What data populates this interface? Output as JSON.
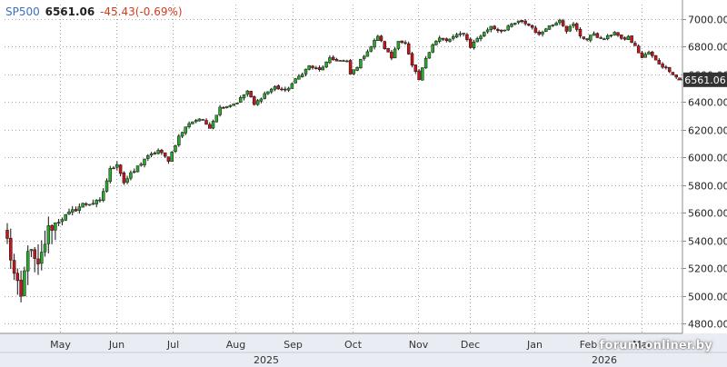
{
  "header": {
    "symbol": "SP500",
    "last": "6561.06",
    "change": "-45.43(-0.69%)"
  },
  "colors": {
    "up": "#2ba82b",
    "down": "#c4161c",
    "grid": "#a8a8a8",
    "axis_band": "#e9ecf2",
    "symbol": "#3a6fc4",
    "change": "#d33b1e",
    "last_tag": "#333333"
  },
  "watermark": "forum.onliner.by",
  "chart_data": {
    "type": "candlestick",
    "symbol": "SP500",
    "last_value": 6561.06,
    "last_label": "6561.06",
    "change": -45.43,
    "change_pct": -0.69,
    "ylim": [
      4700,
      7100
    ],
    "y_ticks": [
      4800,
      5000,
      5200,
      5400,
      5600,
      5800,
      6000,
      6200,
      6400,
      6600,
      6800,
      7000
    ],
    "y_tick_labels": [
      "4800.00",
      "5000.00",
      "5200.00",
      "5400.00",
      "5600.00",
      "5800.00",
      "6000.00",
      "6200.00",
      "6400.00",
      "6600.00",
      "6800.00",
      "7000.00"
    ],
    "x_months": [
      "May",
      "Jun",
      "Jul",
      "Aug",
      "Sep",
      "Oct",
      "Nov",
      "Dec",
      "Jan",
      "Feb",
      "Mar"
    ],
    "x_years": [
      "2025",
      "2026"
    ],
    "grid": true,
    "price_path": [
      [
        0,
        5400
      ],
      [
        2,
        5150
      ],
      [
        4,
        4980
      ],
      [
        6,
        5350
      ],
      [
        9,
        5200
      ],
      [
        12,
        5480
      ],
      [
        16,
        5560
      ],
      [
        22,
        5660
      ],
      [
        27,
        5680
      ],
      [
        30,
        5910
      ],
      [
        32,
        5960
      ],
      [
        34,
        5820
      ],
      [
        37,
        5900
      ],
      [
        40,
        5990
      ],
      [
        44,
        6050
      ],
      [
        47,
        5980
      ],
      [
        50,
        6150
      ],
      [
        53,
        6250
      ],
      [
        56,
        6280
      ],
      [
        59,
        6220
      ],
      [
        62,
        6360
      ],
      [
        65,
        6380
      ],
      [
        67,
        6400
      ],
      [
        70,
        6480
      ],
      [
        72,
        6380
      ],
      [
        75,
        6460
      ],
      [
        78,
        6510
      ],
      [
        81,
        6480
      ],
      [
        84,
        6560
      ],
      [
        88,
        6660
      ],
      [
        91,
        6630
      ],
      [
        94,
        6710
      ],
      [
        97,
        6700
      ],
      [
        99,
        6690
      ],
      [
        100,
        6600
      ],
      [
        102,
        6660
      ],
      [
        104,
        6740
      ],
      [
        106,
        6800
      ],
      [
        108,
        6880
      ],
      [
        110,
        6790
      ],
      [
        112,
        6720
      ],
      [
        114,
        6850
      ],
      [
        116,
        6820
      ],
      [
        118,
        6660
      ],
      [
        120,
        6560
      ],
      [
        122,
        6720
      ],
      [
        124,
        6820
      ],
      [
        126,
        6860
      ],
      [
        128,
        6840
      ],
      [
        130,
        6870
      ],
      [
        133,
        6900
      ],
      [
        135,
        6800
      ],
      [
        137,
        6860
      ],
      [
        139,
        6900
      ],
      [
        141,
        6950
      ],
      [
        143,
        6920
      ],
      [
        145,
        6920
      ],
      [
        147,
        6960
      ],
      [
        149,
        6980
      ],
      [
        151,
        6970
      ],
      [
        153,
        6940
      ],
      [
        155,
        6880
      ],
      [
        157,
        6940
      ],
      [
        159,
        6960
      ],
      [
        161,
        7000
      ],
      [
        163,
        6920
      ],
      [
        165,
        6960
      ],
      [
        167,
        6880
      ],
      [
        169,
        6850
      ],
      [
        171,
        6900
      ],
      [
        173,
        6850
      ],
      [
        175,
        6870
      ],
      [
        177,
        6910
      ],
      [
        179,
        6850
      ],
      [
        181,
        6870
      ],
      [
        183,
        6800
      ],
      [
        185,
        6720
      ],
      [
        187,
        6760
      ],
      [
        189,
        6700
      ],
      [
        191,
        6660
      ],
      [
        193,
        6630
      ],
      [
        195,
        6580
      ],
      [
        196,
        6561.06
      ]
    ]
  }
}
